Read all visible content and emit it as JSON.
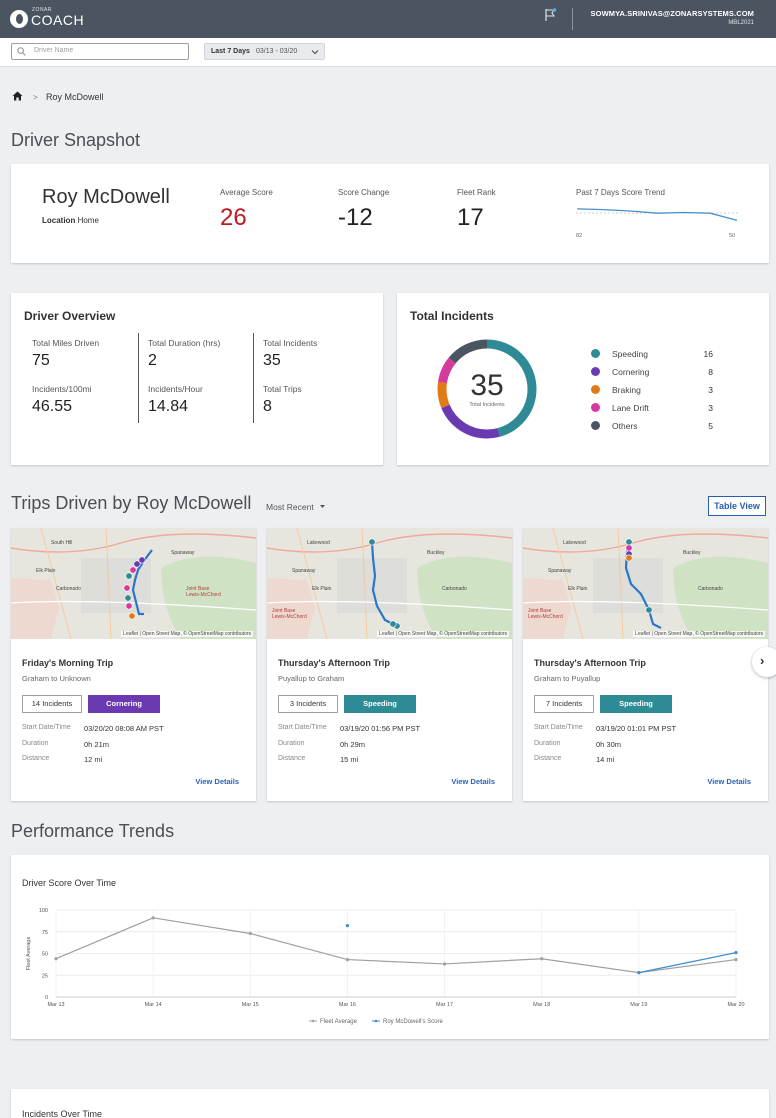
{
  "topbar": {
    "logo_small": "ZONAR",
    "logo_text": "COACH",
    "user_email": "SOWMYA.SRINIVAS@ZONARSYSTEMS.COM",
    "user_org": "MBL2021"
  },
  "filters": {
    "search_placeholder": "Driver Name",
    "date_label": "Last 7 Days",
    "date_range": "03/13 - 03/20"
  },
  "breadcrumb": {
    "current": "Roy McDowell",
    "separator": ">"
  },
  "snapshot": {
    "title": "Driver Snapshot",
    "driver_name": "Roy McDowell",
    "location_label": "Location",
    "location_value": "Home",
    "average_score_label": "Average Score",
    "average_score": "26",
    "score_change_label": "Score Change",
    "score_change": "-12",
    "fleet_rank_label": "Fleet Rank",
    "fleet_rank": "17",
    "trend_label": "Past 7 Days Score Trend",
    "trend_start": "82",
    "trend_end": "50",
    "trend_values": [
      82,
      80,
      76,
      70,
      72,
      70,
      50
    ],
    "trend_color": "#4a90c8"
  },
  "overview": {
    "title": "Driver Overview",
    "total_miles_label": "Total Miles Driven",
    "total_miles": "75",
    "total_duration_label": "Total Duration (hrs)",
    "total_duration": "2",
    "total_incidents_label": "Total Incidents",
    "total_incidents": "35",
    "incidents_per_100mi_label": "Incidents/100mi",
    "incidents_per_100mi": "46.55",
    "incidents_per_hour_label": "Incidents/Hour",
    "incidents_per_hour": "14.84",
    "total_trips_label": "Total Trips",
    "total_trips": "8"
  },
  "incidents": {
    "title": "Total Incidents",
    "total": "35",
    "total_label": "Total Incidents",
    "items": [
      {
        "label": "Speeding",
        "count": "16",
        "color": "#2e8b96"
      },
      {
        "label": "Cornering",
        "count": "8",
        "color": "#6a3ab2"
      },
      {
        "label": "Braking",
        "count": "3",
        "color": "#e07b17"
      },
      {
        "label": "Lane Drift",
        "count": "3",
        "color": "#d63a9e"
      },
      {
        "label": "Others",
        "count": "5",
        "color": "#4b5561"
      }
    ]
  },
  "trips": {
    "title": "Trips Driven by Roy McDowell",
    "sort_label": "Most Recent",
    "table_view_label": "Table View",
    "start_label": "Start Date/Time",
    "duration_label": "Duration",
    "distance_label": "Distance",
    "view_details_label": "View Details",
    "map_attribution": "Leaflet | Open Street Map, © OpenStreetMap contributors",
    "items": [
      {
        "name": "Friday's Morning Trip",
        "route": "Graham to Unknown",
        "incidents": "14 Incidents",
        "tag": "Cornering",
        "tag_color": "#6a3ab2",
        "start": "03/20/20 08:08 AM PST",
        "duration": "0h 21m",
        "distance": "12 mi",
        "map_labels": [
          "South Hill",
          "Spanaway",
          "Elk Plain",
          "Carbonado",
          "Joint Base\nLewis-McChord"
        ]
      },
      {
        "name": "Thursday's Afternoon Trip",
        "route": "Puyallup to Graham",
        "incidents": "3 Incidents",
        "tag": "Speeding",
        "tag_color": "#2e8b96",
        "start": "03/19/20 01:56 PM PST",
        "duration": "0h 29m",
        "distance": "15 mi",
        "map_labels": [
          "Lakewood",
          "Buckley",
          "Spanaway",
          "Elk Plain",
          "Carbonado",
          "Joint Base\nLewis-McChord"
        ]
      },
      {
        "name": "Thursday's Afternoon Trip",
        "route": "Graham to Puyallup",
        "incidents": "7 Incidents",
        "tag": "Speeding",
        "tag_color": "#2e8b96",
        "start": "03/19/20 01:01 PM PST",
        "duration": "0h 30m",
        "distance": "14 mi",
        "map_labels": [
          "Lakewood",
          "Buckley",
          "Spanaway",
          "Elk Plain",
          "Carbonado",
          "Joint Base\nLewis-McChord"
        ]
      }
    ]
  },
  "performance": {
    "title": "Performance Trends",
    "card_title": "Driver Score Over Time"
  },
  "incidents_over_time": {
    "card_title": "Incidents Over Time"
  },
  "chart_data": {
    "type": "line",
    "title": "Driver Score Over Time",
    "xlabel": "",
    "ylabel": "Fleet Average",
    "ylim": [
      0,
      100
    ],
    "yticks": [
      "100",
      "75",
      "50",
      "25",
      "0"
    ],
    "categories": [
      "Mar 13",
      "Mar 14",
      "Mar 15",
      "Mar 16",
      "Mar 17",
      "Mar 18",
      "Mar 19",
      "Mar 20"
    ],
    "series": [
      {
        "name": "Fleet Average",
        "color": "#a0a0a0",
        "values": [
          44,
          91,
          73,
          43,
          38,
          44,
          28,
          43
        ]
      },
      {
        "name": "Roy McDowell's Score",
        "color": "#3b8fd1",
        "values": [
          null,
          null,
          null,
          82,
          null,
          null,
          28,
          51
        ]
      }
    ],
    "grid": true,
    "legend": "bottom-center"
  }
}
